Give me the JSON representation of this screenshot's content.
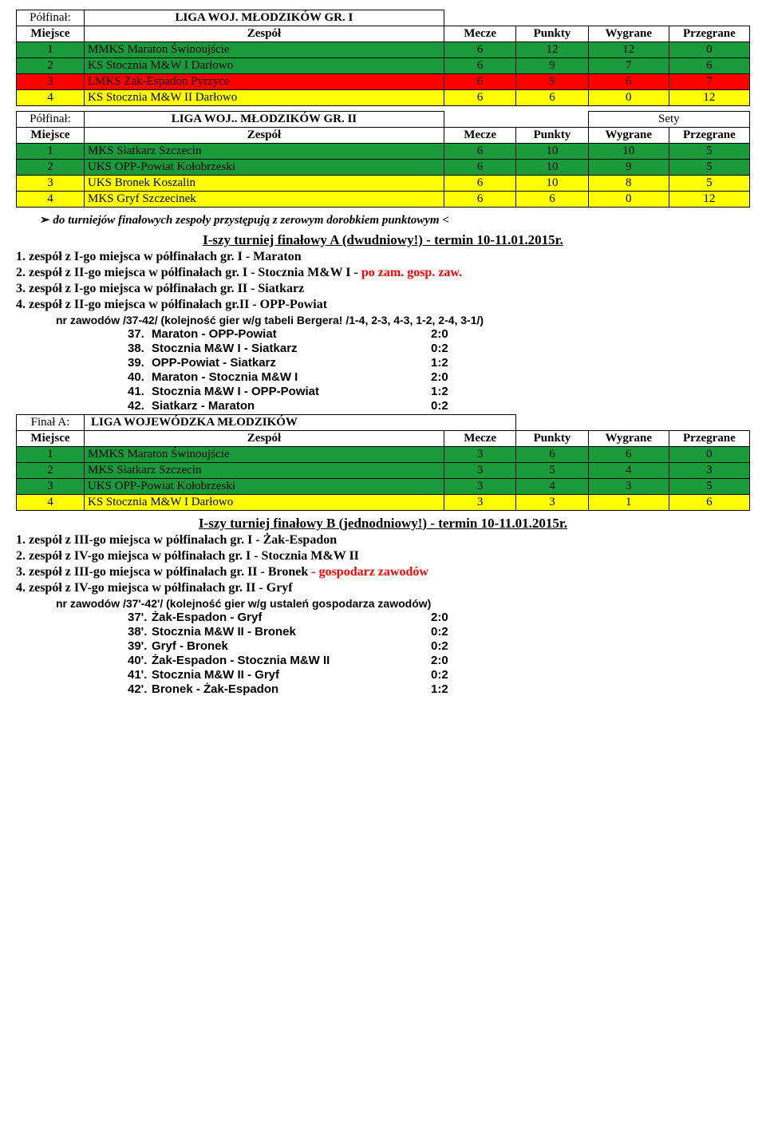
{
  "pf1": {
    "label": "Półfinał:",
    "title": "LIGA WOJ. MŁODZIKÓW GR. I",
    "headers": [
      "Miejsce",
      "Zespół",
      "Mecze",
      "Punkty",
      "Wygrane",
      "Przegrane"
    ],
    "rows": [
      {
        "n": "1",
        "team": "MMKS Maraton Świnoujście",
        "m": "6",
        "p": "12",
        "w": "12",
        "l": "0",
        "cls": "row-green"
      },
      {
        "n": "2",
        "team": "KS Stocznia M&W I Darłowo",
        "m": "6",
        "p": "9",
        "w": "7",
        "l": "6",
        "cls": "row-green"
      },
      {
        "n": "3",
        "team": "LMKS Żak-Espadon Pyrzyce",
        "m": "6",
        "p": "9",
        "w": "6",
        "l": "7",
        "cls": "row-red"
      },
      {
        "n": "4",
        "team": "KS Stocznia M&W II Darłowo",
        "m": "6",
        "p": "6",
        "w": "0",
        "l": "12",
        "cls": "row-yellow"
      }
    ]
  },
  "pf2": {
    "label": "Półfinał:",
    "title": "LIGA WOJ.. MŁODZIKÓW GR. II",
    "sety": "Sety",
    "headers": [
      "Miejsce",
      "Zespół",
      "Mecze",
      "Punkty",
      "Wygrane",
      "Przegrane"
    ],
    "rows": [
      {
        "n": "1",
        "team": "MKS Siatkarz Szczecin",
        "m": "6",
        "p": "10",
        "w": "10",
        "l": "5",
        "cls": "row-green"
      },
      {
        "n": "2",
        "team": "UKS OPP-Powiat Kołobrzeski",
        "m": "6",
        "p": "10",
        "w": "9",
        "l": "5",
        "cls": "row-green"
      },
      {
        "n": "3",
        "team": "UKS Bronek Koszalin",
        "m": "6",
        "p": "10",
        "w": "8",
        "l": "5",
        "cls": "row-yellow"
      },
      {
        "n": "4",
        "team": "MKS Gryf Szczecinek",
        "m": "6",
        "p": "6",
        "w": "0",
        "l": "12",
        "cls": "row-yellow"
      }
    ]
  },
  "note": "do turniejów finałowych zespoły przystępują z zerowym dorobkiem punktowym <",
  "secA": {
    "title": "I-szy turniej finałowy A (dwudniowy!) - termin 10-11.01.2015r.",
    "lines": [
      {
        "t": "1. zespół z I-go miejsca w półfinałach gr. I - Maraton"
      },
      {
        "t": "2. zespół z II-go miejsca w półfinałach gr. I - Stocznia M&W I - ",
        "r": "po zam. gosp. zaw."
      },
      {
        "t": "3. zespół z I-go miejsca w półfinałach gr. II - Siatkarz"
      },
      {
        "t": "4. zespół z II-go miejsca w półfinałach gr.II - OPP-Powiat"
      }
    ],
    "nr": "nr zawodów /37-42/ (kolejność gier w/g tabeli Bergera! /1-4, 2-3, 4-3, 1-2, 2-4, 3-1/)",
    "matches": [
      {
        "n": "37.",
        "t": "Maraton - OPP-Powiat",
        "s": "2:0"
      },
      {
        "n": "38.",
        "t": "Stocznia M&W I - Siatkarz",
        "s": "0:2"
      },
      {
        "n": "39.",
        "t": "OPP-Powiat  - Siatkarz",
        "s": "1:2"
      },
      {
        "n": "40.",
        "t": "Maraton - Stocznia M&W I",
        "s": "2:0"
      },
      {
        "n": "41.",
        "t": "Stocznia M&W I - OPP-Powiat",
        "s": "1:2"
      },
      {
        "n": "42.",
        "t": "Siatkarz - Maraton",
        "s": "0:2"
      }
    ]
  },
  "finalA": {
    "label": "Finał A:",
    "title": "LIGA WOJEWÓDZKA MŁODZIKÓW",
    "headers": [
      "Miejsce",
      "Zespół",
      "Mecze",
      "Punkty",
      "Wygrane",
      "Przegrane"
    ],
    "rows": [
      {
        "n": "1",
        "team": "MMKS Maraton Świnoujście",
        "m": "3",
        "p": "6",
        "w": "6",
        "l": "0",
        "cls": "row-green"
      },
      {
        "n": "2",
        "team": "MKS Siatkarz Szczecin",
        "m": "3",
        "p": "5",
        "w": "4",
        "l": "3",
        "cls": "row-green"
      },
      {
        "n": "3",
        "team": "UKS OPP-Powiat Kołobrzeski",
        "m": "3",
        "p": "4",
        "w": "3",
        "l": "5",
        "cls": "row-green"
      },
      {
        "n": "4",
        "team": "KS Stocznia M&W I Darłowo",
        "m": "3",
        "p": "3",
        "w": "1",
        "l": "6",
        "cls": "row-yellow"
      }
    ]
  },
  "secB": {
    "title": "I-szy turniej finałowy B  (jednodniowy!) - termin 10-11.01.2015r.",
    "lines": [
      {
        "t": "1. zespół z III-go miejsca w półfinałach gr. I - Żak-Espadon"
      },
      {
        "t": "2. zespół z IV-go miejsca w półfinałach gr. I - Stocznia M&W II"
      },
      {
        "t": "3. zespół z III-go miejsca w półfinałach gr. II - Bronek ",
        "r": "- gospodarz zawodów"
      },
      {
        "t": "4. zespół z IV-go miejsca w półfinałach gr. II - Gryf"
      }
    ],
    "nr": "nr zawodów /37'-42'/ (kolejność gier w/g ustaleń gospodarza zawodów)",
    "matches": [
      {
        "n": "37'.",
        "t": "Żak-Espadon - Gryf",
        "s": "2:0"
      },
      {
        "n": "38'.",
        "t": "Stocznia M&W II - Bronek",
        "s": "0:2"
      },
      {
        "n": "39'.",
        "t": "Gryf - Bronek",
        "s": "0:2"
      },
      {
        "n": "40'.",
        "t": "Żak-Espadon - Stocznia M&W II",
        "s": "2:0"
      },
      {
        "n": "41'.",
        "t": "Stocznia M&W II - Gryf",
        "s": "0:2"
      },
      {
        "n": "42'.",
        "t": "Bronek - Żak-Espadon",
        "s": "1:2"
      }
    ]
  }
}
